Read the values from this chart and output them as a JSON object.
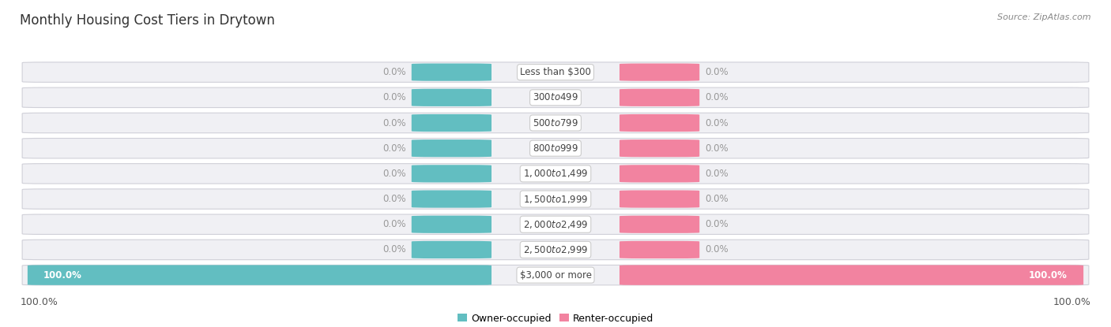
{
  "title": "Monthly Housing Cost Tiers in Drytown",
  "source": "Source: ZipAtlas.com",
  "categories": [
    "Less than $300",
    "$300 to $499",
    "$500 to $799",
    "$800 to $999",
    "$1,000 to $1,499",
    "$1,500 to $1,999",
    "$2,000 to $2,499",
    "$2,500 to $2,999",
    "$3,000 or more"
  ],
  "owner_values": [
    0.0,
    0.0,
    0.0,
    0.0,
    0.0,
    0.0,
    0.0,
    0.0,
    100.0
  ],
  "renter_values": [
    0.0,
    0.0,
    0.0,
    0.0,
    0.0,
    0.0,
    0.0,
    0.0,
    100.0
  ],
  "owner_color": "#62bec1",
  "renter_color": "#f283a0",
  "row_bg_color": "#f0f0f4",
  "row_edge_color": "#d0d0d8",
  "background_color": "#ffffff",
  "title_fontsize": 12,
  "source_fontsize": 8,
  "label_fontsize": 8.5,
  "category_fontsize": 8.5,
  "legend_fontsize": 9,
  "owner_text_color": "#ffffff",
  "renter_text_color": "#ffffff",
  "zero_text_color": "#999999",
  "bottom_label_color": "#555555"
}
